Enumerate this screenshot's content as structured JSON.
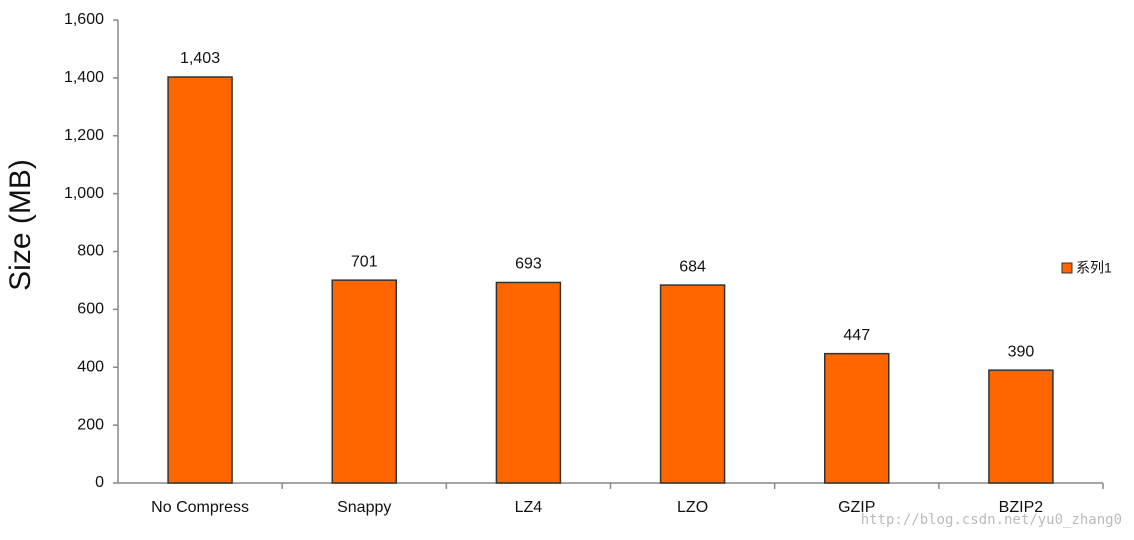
{
  "chart_data": {
    "type": "bar",
    "y_label": "Size (MB)",
    "categories": [
      "No Compress",
      "Snappy",
      "LZ4",
      "LZO",
      "GZIP",
      "BZIP2"
    ],
    "series": [
      {
        "name": "系列1",
        "color": "#ff6600",
        "values": [
          1403,
          701,
          693,
          684,
          447,
          390
        ]
      }
    ],
    "value_labels": [
      "1,403",
      "701",
      "693",
      "684",
      "447",
      "390"
    ],
    "ylim": [
      0,
      1600
    ],
    "yticks": [
      0,
      200,
      400,
      600,
      800,
      {
        "value": 1000,
        "label": "1,000"
      },
      {
        "value": 1200,
        "label": "1,200"
      },
      {
        "value": 1400,
        "label": "1,400"
      },
      {
        "value": 1600,
        "label": "1,600"
      }
    ],
    "grid": false,
    "legend": "right",
    "watermark": "http://blog.csdn.net/yu0_zhang0"
  }
}
